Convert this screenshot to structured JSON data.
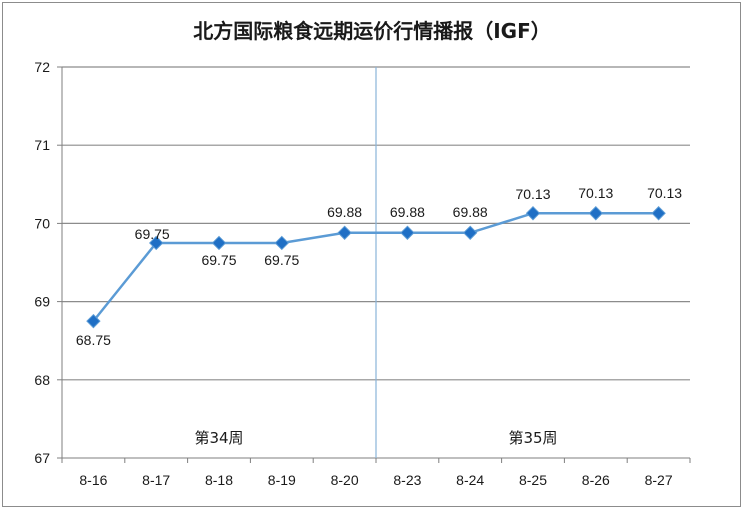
{
  "chart_data": {
    "type": "line",
    "title": "北方国际粮食远期运价行情播报（IGF）",
    "categories": [
      "8-16",
      "8-17",
      "8-18",
      "8-19",
      "8-20",
      "8-23",
      "8-24",
      "8-25",
      "8-26",
      "8-27"
    ],
    "values": [
      68.75,
      69.75,
      69.75,
      69.75,
      69.88,
      69.88,
      69.88,
      70.13,
      70.13,
      70.13
    ],
    "data_labels": [
      "68.75",
      "69.75",
      "69.75",
      "69.75",
      "69.88",
      "69.88",
      "69.88",
      "70.13",
      "70.13",
      "70.13"
    ],
    "ylim": [
      67,
      72
    ],
    "yticks": [
      "67",
      "68",
      "69",
      "70",
      "71",
      "72"
    ],
    "grid": true,
    "legend": "none",
    "line_color": "#5b9bd5",
    "marker_color": "#1f6fc5",
    "divider_after_category": "8-20",
    "week_labels": [
      "第34周",
      "第35周"
    ]
  }
}
